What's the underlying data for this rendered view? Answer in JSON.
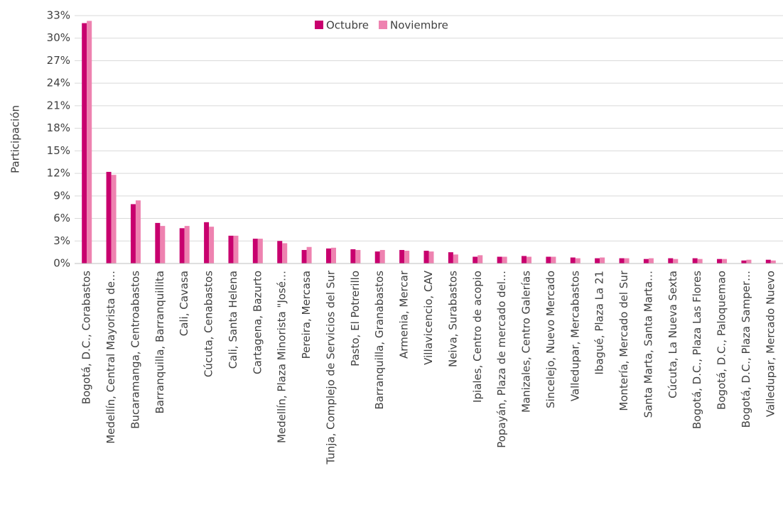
{
  "chart_data": {
    "type": "bar",
    "ylabel": "Participación",
    "categories": [
      "Bogotá, D.C., Corabastos",
      "Medellín, Central Mayorista de…",
      "Bucaramanga, Centroabastos",
      "Barranquilla, Barranquillita",
      "Cali, Cavasa",
      "Cúcuta, Cenabastos",
      "Cali, Santa Helena",
      "Cartagena, Bazurto",
      "Medellín, Plaza Minorista \"José…",
      "Pereira, Mercasa",
      "Tunja, Complejo de Servicios del Sur",
      "Pasto, El Potrerillo",
      "Barranquilla, Granabastos",
      "Armenia, Mercar",
      "Villavicencio, CAV",
      "Neiva, Surabastos",
      "Ipiales, Centro de acopio",
      "Popayán, Plaza de mercado del…",
      "Manizales, Centro Galerías",
      "Sincelejo, Nuevo Mercado",
      "Valledupar, Mercabastos",
      "Ibagué, Plaza La 21",
      "Montería, Mercado del Sur",
      "Santa Marta, Santa Marta…",
      "Cúcuta, La Nueva Sexta",
      "Bogotá, D.C., Plaza Las Flores",
      "Bogotá, D.C., Paloquemao",
      "Bogotá, D.C., Plaza Samper…",
      "Valledupar, Mercado Nuevo"
    ],
    "series": [
      {
        "name": "Octubre",
        "color": "#c8006e",
        "values": [
          32.0,
          12.2,
          7.9,
          5.4,
          4.7,
          5.5,
          3.7,
          3.3,
          3.0,
          1.8,
          2.0,
          1.9,
          1.6,
          1.8,
          1.7,
          1.5,
          0.9,
          0.9,
          1.0,
          0.9,
          0.8,
          0.7,
          0.7,
          0.6,
          0.7,
          0.7,
          0.6,
          0.4,
          0.5
        ]
      },
      {
        "name": "Noviembre",
        "color": "#ee82b0",
        "values": [
          32.3,
          11.8,
          8.4,
          5.0,
          5.0,
          4.9,
          3.7,
          3.3,
          2.7,
          2.2,
          2.1,
          1.8,
          1.8,
          1.7,
          1.6,
          1.2,
          1.1,
          0.9,
          0.9,
          0.9,
          0.7,
          0.8,
          0.7,
          0.7,
          0.6,
          0.6,
          0.6,
          0.5,
          0.4
        ]
      }
    ],
    "ylim": [
      0,
      33
    ],
    "yticks": [
      {
        "value": 0,
        "label": "0%"
      },
      {
        "value": 3,
        "label": "3%"
      },
      {
        "value": 6,
        "label": "6%"
      },
      {
        "value": 9,
        "label": "9%"
      },
      {
        "value": 12,
        "label": "12%"
      },
      {
        "value": 15,
        "label": "15%"
      },
      {
        "value": 18,
        "label": "18%"
      },
      {
        "value": 21,
        "label": "21%"
      },
      {
        "value": 24,
        "label": "24%"
      },
      {
        "value": 27,
        "label": "27%"
      },
      {
        "value": 30,
        "label": "30%"
      },
      {
        "value": 33,
        "label": "33%"
      }
    ],
    "grid": true,
    "legend": "top"
  }
}
